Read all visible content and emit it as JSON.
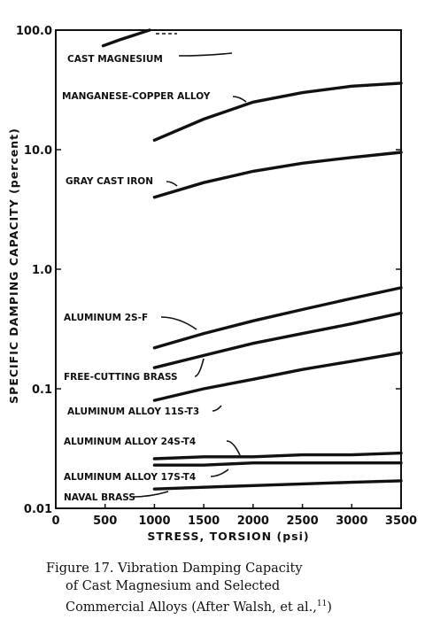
{
  "chart_data": {
    "type": "line",
    "y_scale": "log",
    "ylabel": "SPECIFIC DAMPING CAPACITY (percent)",
    "xlabel": "STRESS, TORSION (psi)",
    "xlim": [
      0,
      3500
    ],
    "ylim": [
      0.01,
      100
    ],
    "x_ticks": [
      0,
      500,
      1000,
      1500,
      2000,
      2500,
      3000,
      3500
    ],
    "x_tick_labels": [
      "0",
      "500",
      "1000",
      "1500",
      "2000",
      "2500",
      "3000",
      "3500"
    ],
    "y_ticks": [
      0.01,
      0.1,
      1,
      10,
      100
    ],
    "y_tick_labels": [
      "0.01",
      "0.1",
      "1.0",
      "10.0",
      "100.0"
    ],
    "grid": false,
    "series": [
      {
        "name": "CAST MAGNESIUM",
        "x": [
          480,
          650,
          800,
          900,
          950
        ],
        "y": [
          74,
          83,
          91,
          97,
          100
        ]
      },
      {
        "name": "MANGANESE-COPPER ALLOY",
        "x": [
          1000,
          1500,
          2000,
          2500,
          3000,
          3500
        ],
        "y": [
          12,
          18,
          25,
          30,
          34,
          36
        ]
      },
      {
        "name": "GRAY CAST IRON",
        "x": [
          1000,
          1500,
          2000,
          2500,
          3000,
          3500
        ],
        "y": [
          4.0,
          5.3,
          6.6,
          7.7,
          8.6,
          9.5
        ]
      },
      {
        "name": "ALUMINUM 2S-F",
        "x": [
          1000,
          1500,
          2000,
          2500,
          3000,
          3500
        ],
        "y": [
          0.22,
          0.29,
          0.37,
          0.46,
          0.57,
          0.7
        ]
      },
      {
        "name": "FREE-CUTTING BRASS",
        "x": [
          1000,
          1500,
          2000,
          2500,
          3000,
          3500
        ],
        "y": [
          0.15,
          0.19,
          0.24,
          0.29,
          0.35,
          0.43
        ]
      },
      {
        "name": "ALUMINUM ALLOY 11S-T3",
        "x": [
          1000,
          1500,
          2000,
          2500,
          3000,
          3500
        ],
        "y": [
          0.08,
          0.1,
          0.12,
          0.145,
          0.17,
          0.2
        ]
      },
      {
        "name": "ALUMINUM ALLOY 24S-T4",
        "x": [
          1000,
          1500,
          2000,
          2500,
          3000,
          3500
        ],
        "y": [
          0.026,
          0.027,
          0.027,
          0.028,
          0.028,
          0.029
        ]
      },
      {
        "name": "ALUMINUM ALLOY 17S-T4",
        "x": [
          1000,
          1500,
          2000,
          2500,
          3000,
          3500
        ],
        "y": [
          0.023,
          0.023,
          0.024,
          0.024,
          0.024,
          0.024
        ]
      },
      {
        "name": "NAVAL BRASS",
        "x": [
          1000,
          1500,
          2000,
          2500,
          3000,
          3500
        ],
        "y": [
          0.0145,
          0.015,
          0.0155,
          0.016,
          0.0165,
          0.017
        ]
      }
    ]
  },
  "caption": {
    "line1": "Figure 17.  Vibration Damping Capacity",
    "line2": "of Cast Magnesium and Selected",
    "line3": "Commercial Alloys (After Walsh, et al.,",
    "ref": "11",
    "close": ")"
  }
}
